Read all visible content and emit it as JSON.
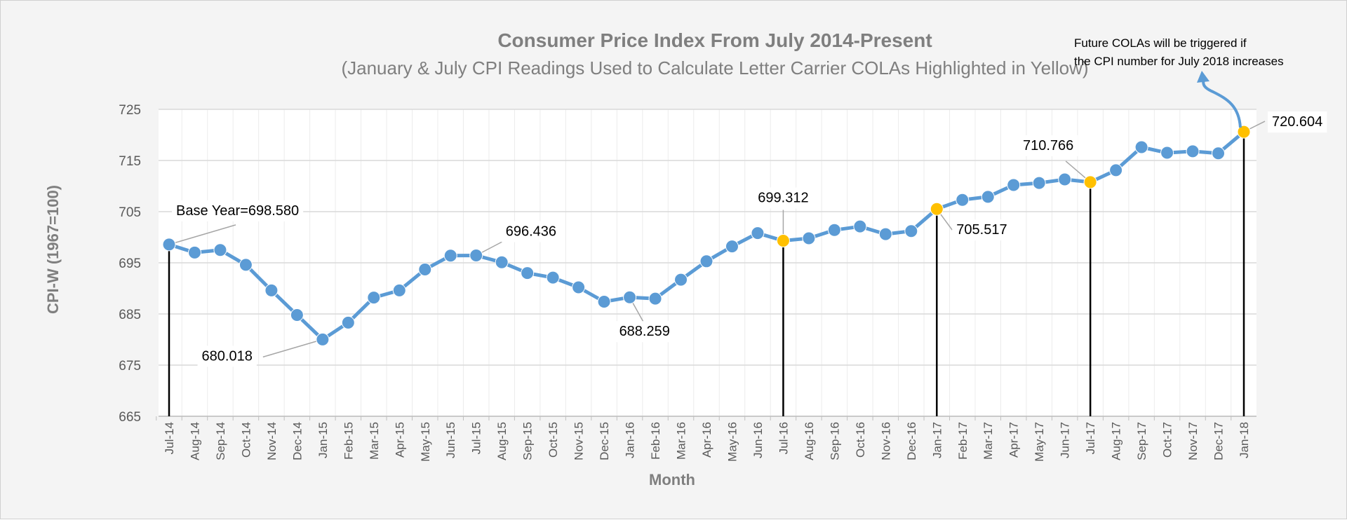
{
  "chart_data": {
    "type": "line",
    "title": "Consumer Price Index From July 2014-Present",
    "subtitle": "(January & July CPI Readings Used to Calculate Letter Carrier COLAs Highlighted in Yellow)",
    "xlabel": "Month",
    "ylabel": "CPI-W (1967=100)",
    "ylim": [
      665,
      725
    ],
    "yticks": [
      665,
      675,
      685,
      695,
      705,
      715,
      725
    ],
    "grid": true,
    "categories": [
      "Jul-14",
      "Aug-14",
      "Sep-14",
      "Oct-14",
      "Nov-14",
      "Dec-14",
      "Jan-15",
      "Feb-15",
      "Mar-15",
      "Apr-15",
      "May-15",
      "Jun-15",
      "Jul-15",
      "Aug-15",
      "Sep-15",
      "Oct-15",
      "Nov-15",
      "Dec-15",
      "Jan-16",
      "Feb-16",
      "Mar-16",
      "Apr-16",
      "May-16",
      "Jun-16",
      "Jul-16",
      "Aug-16",
      "Sep-16",
      "Oct-16",
      "Nov-16",
      "Dec-16",
      "Jan-17",
      "Feb-17",
      "Mar-17",
      "Apr-17",
      "May-17",
      "Jun-17",
      "Jul-17",
      "Aug-17",
      "Sep-17",
      "Oct-17",
      "Nov-17",
      "Dec-17",
      "Jan-18"
    ],
    "values": [
      698.58,
      697.0,
      697.5,
      694.6,
      689.6,
      684.8,
      680.018,
      683.3,
      688.2,
      689.6,
      693.7,
      696.4,
      696.436,
      695.1,
      693.0,
      692.1,
      690.2,
      687.4,
      688.259,
      688.0,
      691.7,
      695.3,
      698.2,
      700.8,
      699.312,
      699.8,
      701.4,
      702.1,
      700.6,
      701.2,
      705.517,
      707.3,
      707.9,
      710.2,
      710.6,
      711.3,
      710.766,
      713.1,
      717.6,
      716.5,
      716.8,
      716.4,
      720.604
    ],
    "line_color": "#5b9bd5",
    "highlight_color": "#ffc000",
    "highlight_indices": [
      24,
      30,
      36,
      42
    ],
    "dropline_indices": [
      0,
      24,
      30,
      36,
      42
    ],
    "annotations": [
      {
        "index": 0,
        "text": "Base Year=698.580"
      },
      {
        "index": 6,
        "text": "680.018"
      },
      {
        "index": 12,
        "text": "696.436"
      },
      {
        "index": 18,
        "text": "688.259"
      },
      {
        "index": 24,
        "text": "699.312"
      },
      {
        "index": 30,
        "text": "705.517"
      },
      {
        "index": 36,
        "text": "710.766"
      },
      {
        "index": 42,
        "text": "720.604"
      }
    ],
    "note_lines": [
      "Future COLAs will be triggered if",
      "the CPI number for July 2018 increases"
    ]
  }
}
